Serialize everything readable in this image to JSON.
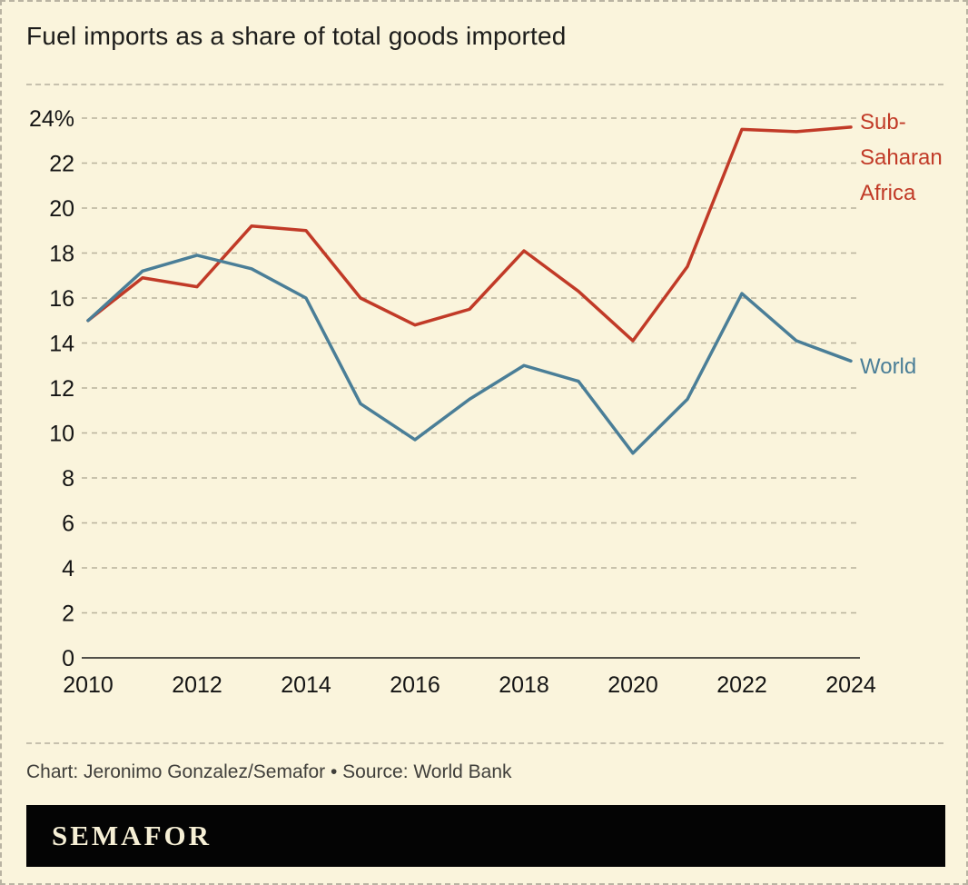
{
  "header": {
    "title": "Fuel imports as a share of total goods imported"
  },
  "footer": {
    "credit": "Chart: Jeronimo Gonzalez/Semafor • Source: World Bank",
    "brand": "SEMAFOR"
  },
  "colors": {
    "background": "#FAF4DC",
    "africa_line": "#C13A27",
    "world_line": "#4A7E97",
    "grid": "#b8b19c",
    "brand_bar": "#040404"
  },
  "chart_data": {
    "type": "line",
    "title": "Fuel imports as a share of total goods imported",
    "x": [
      2010,
      2011,
      2012,
      2013,
      2014,
      2015,
      2016,
      2017,
      2018,
      2019,
      2020,
      2021,
      2022,
      2023,
      2024
    ],
    "series": [
      {
        "name": "Sub-Saharan Africa",
        "color": "#C13A27",
        "values": [
          15.0,
          16.9,
          16.5,
          19.2,
          19.0,
          16.0,
          14.8,
          15.5,
          18.1,
          16.3,
          14.1,
          17.4,
          23.5,
          23.4,
          23.6
        ]
      },
      {
        "name": "World",
        "color": "#4A7E97",
        "values": [
          15.0,
          17.2,
          17.9,
          17.3,
          16.0,
          11.3,
          9.7,
          11.5,
          13.0,
          12.3,
          9.1,
          11.5,
          16.2,
          14.1,
          13.2
        ]
      }
    ],
    "xlabel": "",
    "ylabel": "",
    "ylim": [
      0,
      24
    ],
    "ytick_step": 2,
    "ytick_top_label": "24%",
    "xticks": [
      2010,
      2012,
      2014,
      2016,
      2018,
      2020,
      2022,
      2024
    ],
    "grid": "horizontal-dashed",
    "legend_position": "line-end-labels-right"
  }
}
